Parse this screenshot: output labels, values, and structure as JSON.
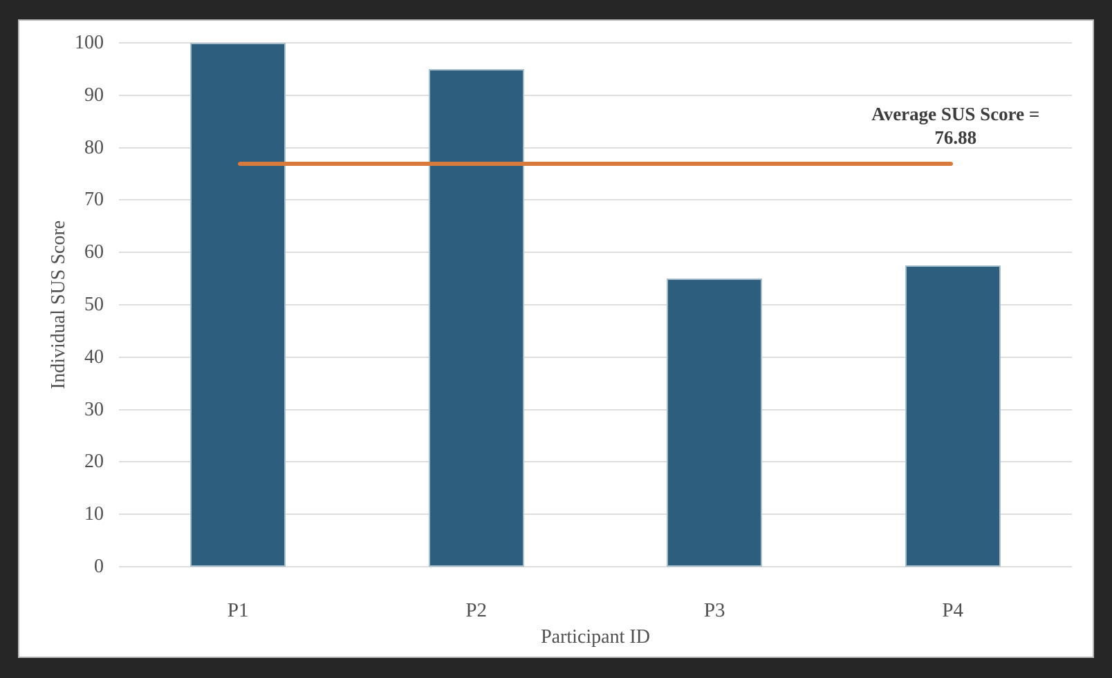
{
  "frame": {
    "background_color": "#262626",
    "panel_background": "#ffffff",
    "panel_border_color": "#b9b9b9"
  },
  "chart_data": {
    "type": "bar",
    "title": "",
    "categories": [
      "P1",
      "P2",
      "P3",
      "P4"
    ],
    "series": [
      {
        "name": "Individual SUS Score",
        "type": "bar",
        "values": [
          100,
          95,
          55,
          57.5
        ],
        "color": "#2e5e7d",
        "border_color": "#a7becc"
      },
      {
        "name": "Average SUS Score",
        "type": "line",
        "values": [
          76.88,
          76.88,
          76.88,
          76.88
        ],
        "color": "#d87a3c"
      }
    ],
    "average_value": 76.88,
    "annotation": {
      "line1": "Average SUS Score =",
      "line2": "76.88"
    },
    "xlabel": "Participant ID",
    "ylabel": "Individual SUS Score",
    "ylim": [
      0,
      100
    ],
    "yticks": [
      0,
      10,
      20,
      30,
      40,
      50,
      60,
      70,
      80,
      90,
      100
    ],
    "grid": true,
    "gridline_color": "#dedede",
    "tick_label_color": "#4f4f4f",
    "annotation_color": "#3d3d3d",
    "legend_position": "none"
  }
}
